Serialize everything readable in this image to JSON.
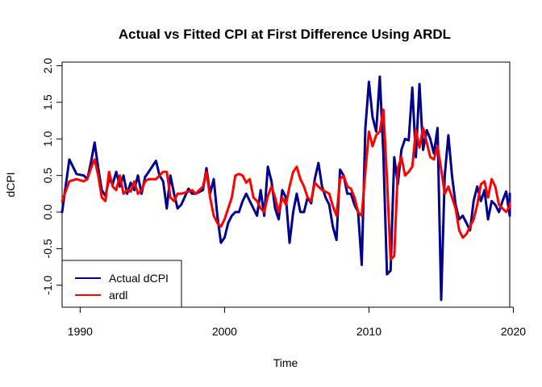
{
  "chart_data": {
    "type": "line",
    "title": "Actual vs Fitted CPI at First Difference Using ARDL",
    "xlabel": "Time",
    "ylabel": "dCPI",
    "xlim": [
      1988.75,
      2019.75
    ],
    "ylim": [
      -1.3,
      2.05
    ],
    "x_ticks": [
      1990,
      2000,
      2010,
      2020
    ],
    "y_ticks": [
      -1.0,
      -0.5,
      0.0,
      0.5,
      1.0,
      1.5,
      2.0
    ],
    "y_tick_labels": [
      "-1.0",
      "-0.5",
      "0.0",
      "0.5",
      "1.0",
      "1.5",
      "2.0"
    ],
    "grid": false,
    "legend_position": "bottom-left",
    "series": [
      {
        "name": "Actual dCPI",
        "color": "#00008B",
        "points": [
          [
            1988.75,
            0.0
          ],
          [
            1989.25,
            0.72
          ],
          [
            1989.75,
            0.52
          ],
          [
            1990.25,
            0.5
          ],
          [
            1990.5,
            0.45
          ],
          [
            1990.75,
            0.68
          ],
          [
            1991.0,
            0.95
          ],
          [
            1991.25,
            0.6
          ],
          [
            1991.5,
            0.3
          ],
          [
            1991.75,
            0.22
          ],
          [
            1992.0,
            0.45
          ],
          [
            1992.25,
            0.38
          ],
          [
            1992.5,
            0.55
          ],
          [
            1992.75,
            0.35
          ],
          [
            1993.0,
            0.5
          ],
          [
            1993.25,
            0.25
          ],
          [
            1993.5,
            0.4
          ],
          [
            1993.75,
            0.3
          ],
          [
            1994.0,
            0.5
          ],
          [
            1994.25,
            0.25
          ],
          [
            1994.5,
            0.48
          ],
          [
            1994.75,
            0.55
          ],
          [
            1995.25,
            0.7
          ],
          [
            1995.5,
            0.5
          ],
          [
            1995.75,
            0.42
          ],
          [
            1996.0,
            0.05
          ],
          [
            1996.25,
            0.5
          ],
          [
            1996.5,
            0.25
          ],
          [
            1996.75,
            0.05
          ],
          [
            1997.0,
            0.1
          ],
          [
            1997.5,
            0.32
          ],
          [
            1997.75,
            0.25
          ],
          [
            1998.0,
            0.25
          ],
          [
            1998.5,
            0.3
          ],
          [
            1998.75,
            0.6
          ],
          [
            1999.0,
            0.25
          ],
          [
            1999.25,
            0.45
          ],
          [
            1999.5,
            -0.05
          ],
          [
            1999.75,
            -0.42
          ],
          [
            2000.0,
            -0.35
          ],
          [
            2000.25,
            -0.15
          ],
          [
            2000.5,
            -0.05
          ],
          [
            2000.75,
            0.0
          ],
          [
            2001.0,
            0.0
          ],
          [
            2001.25,
            0.15
          ],
          [
            2001.5,
            0.25
          ],
          [
            2001.75,
            0.15
          ],
          [
            2002.0,
            0.05
          ],
          [
            2002.25,
            -0.05
          ],
          [
            2002.5,
            0.3
          ],
          [
            2002.75,
            -0.05
          ],
          [
            2003.0,
            0.62
          ],
          [
            2003.25,
            0.42
          ],
          [
            2003.5,
            0.05
          ],
          [
            2003.75,
            -0.1
          ],
          [
            2004.0,
            0.3
          ],
          [
            2004.25,
            0.2
          ],
          [
            2004.5,
            -0.42
          ],
          [
            2004.75,
            0.0
          ],
          [
            2005.0,
            0.25
          ],
          [
            2005.25,
            0.0
          ],
          [
            2005.5,
            0.0
          ],
          [
            2005.75,
            0.2
          ],
          [
            2006.0,
            0.12
          ],
          [
            2006.25,
            0.45
          ],
          [
            2006.5,
            0.67
          ],
          [
            2006.75,
            0.35
          ],
          [
            2007.0,
            0.2
          ],
          [
            2007.25,
            0.1
          ],
          [
            2007.5,
            -0.2
          ],
          [
            2007.75,
            -0.38
          ],
          [
            2008.0,
            0.58
          ],
          [
            2008.25,
            0.5
          ],
          [
            2008.5,
            0.25
          ],
          [
            2008.75,
            0.25
          ],
          [
            2009.0,
            0.1
          ],
          [
            2009.25,
            0.0
          ],
          [
            2009.5,
            -0.72
          ],
          [
            2009.75,
            1.15
          ],
          [
            2010.0,
            1.78
          ],
          [
            2010.25,
            1.3
          ],
          [
            2010.5,
            1.1
          ],
          [
            2010.75,
            1.85
          ],
          [
            2011.0,
            0.8
          ],
          [
            2011.25,
            -0.85
          ],
          [
            2011.5,
            -0.8
          ],
          [
            2011.75,
            0.75
          ],
          [
            2012.0,
            0.38
          ],
          [
            2012.25,
            0.85
          ],
          [
            2012.5,
            1.0
          ],
          [
            2012.75,
            0.98
          ],
          [
            2013.0,
            1.7
          ],
          [
            2013.25,
            0.75
          ],
          [
            2013.5,
            1.75
          ],
          [
            2013.75,
            0.85
          ],
          [
            2014.0,
            1.12
          ],
          [
            2014.25,
            1.0
          ],
          [
            2014.5,
            0.8
          ],
          [
            2014.75,
            1.15
          ],
          [
            2015.0,
            -1.2
          ],
          [
            2015.25,
            0.5
          ],
          [
            2015.5,
            1.05
          ],
          [
            2015.75,
            0.5
          ],
          [
            2016.0,
            0.1
          ],
          [
            2016.25,
            -0.1
          ],
          [
            2016.5,
            -0.05
          ],
          [
            2016.75,
            -0.15
          ],
          [
            2017.0,
            -0.25
          ],
          [
            2017.25,
            0.15
          ],
          [
            2017.5,
            0.35
          ],
          [
            2017.75,
            0.15
          ],
          [
            2018.0,
            0.3
          ],
          [
            2018.25,
            -0.1
          ],
          [
            2018.5,
            0.15
          ],
          [
            2018.75,
            0.1
          ],
          [
            2019.0,
            0.0
          ],
          [
            2019.25,
            0.15
          ],
          [
            2019.5,
            0.28
          ],
          [
            2019.75,
            -0.05
          ],
          [
            2019.75,
            0.25
          ]
        ]
      },
      {
        "name": "ardl",
        "color": "#FF0000",
        "points": [
          [
            1988.75,
            0.15
          ],
          [
            1989.25,
            0.42
          ],
          [
            1989.75,
            0.45
          ],
          [
            1990.25,
            0.42
          ],
          [
            1990.5,
            0.45
          ],
          [
            1990.75,
            0.6
          ],
          [
            1991.0,
            0.72
          ],
          [
            1991.25,
            0.5
          ],
          [
            1991.5,
            0.2
          ],
          [
            1991.75,
            0.15
          ],
          [
            1992.0,
            0.55
          ],
          [
            1992.25,
            0.35
          ],
          [
            1992.5,
            0.3
          ],
          [
            1992.75,
            0.5
          ],
          [
            1993.0,
            0.25
          ],
          [
            1993.25,
            0.3
          ],
          [
            1993.5,
            0.28
          ],
          [
            1993.75,
            0.42
          ],
          [
            1994.0,
            0.25
          ],
          [
            1994.25,
            0.3
          ],
          [
            1994.5,
            0.42
          ],
          [
            1994.75,
            0.45
          ],
          [
            1995.25,
            0.45
          ],
          [
            1995.5,
            0.5
          ],
          [
            1995.75,
            0.55
          ],
          [
            1996.0,
            0.55
          ],
          [
            1996.25,
            0.2
          ],
          [
            1996.5,
            0.15
          ],
          [
            1996.75,
            0.25
          ],
          [
            1997.0,
            0.25
          ],
          [
            1997.5,
            0.28
          ],
          [
            1997.75,
            0.3
          ],
          [
            1998.0,
            0.25
          ],
          [
            1998.5,
            0.35
          ],
          [
            1998.75,
            0.55
          ],
          [
            1999.0,
            0.2
          ],
          [
            1999.25,
            -0.05
          ],
          [
            1999.5,
            -0.15
          ],
          [
            1999.75,
            -0.2
          ],
          [
            2000.0,
            -0.1
          ],
          [
            2000.25,
            0.05
          ],
          [
            2000.5,
            0.2
          ],
          [
            2000.75,
            0.5
          ],
          [
            2001.0,
            0.52
          ],
          [
            2001.25,
            0.5
          ],
          [
            2001.5,
            0.4
          ],
          [
            2001.75,
            0.45
          ],
          [
            2002.0,
            0.2
          ],
          [
            2002.25,
            0.15
          ],
          [
            2002.5,
            0.05
          ],
          [
            2002.75,
            0.0
          ],
          [
            2003.0,
            0.22
          ],
          [
            2003.25,
            0.35
          ],
          [
            2003.5,
            0.2
          ],
          [
            2003.75,
            0.0
          ],
          [
            2004.0,
            0.2
          ],
          [
            2004.25,
            0.1
          ],
          [
            2004.5,
            0.35
          ],
          [
            2004.75,
            0.55
          ],
          [
            2005.0,
            0.62
          ],
          [
            2005.25,
            0.45
          ],
          [
            2005.5,
            0.35
          ],
          [
            2005.75,
            0.2
          ],
          [
            2006.0,
            0.15
          ],
          [
            2006.25,
            0.4
          ],
          [
            2006.5,
            0.35
          ],
          [
            2006.75,
            0.3
          ],
          [
            2007.0,
            0.28
          ],
          [
            2007.25,
            0.25
          ],
          [
            2007.5,
            0.08
          ],
          [
            2007.75,
            -0.05
          ],
          [
            2008.0,
            0.45
          ],
          [
            2008.25,
            0.5
          ],
          [
            2008.5,
            0.35
          ],
          [
            2008.75,
            0.32
          ],
          [
            2009.0,
            0.2
          ],
          [
            2009.25,
            0.0
          ],
          [
            2009.5,
            -0.05
          ],
          [
            2009.75,
            0.55
          ],
          [
            2010.0,
            1.1
          ],
          [
            2010.25,
            0.9
          ],
          [
            2010.5,
            1.05
          ],
          [
            2010.75,
            1.1
          ],
          [
            2011.0,
            1.4
          ],
          [
            2011.25,
            0.45
          ],
          [
            2011.5,
            -0.65
          ],
          [
            2011.75,
            -0.6
          ],
          [
            2012.0,
            0.6
          ],
          [
            2012.25,
            0.75
          ],
          [
            2012.5,
            0.5
          ],
          [
            2012.75,
            0.55
          ],
          [
            2013.0,
            0.62
          ],
          [
            2013.25,
            1.12
          ],
          [
            2013.5,
            0.88
          ],
          [
            2013.75,
            1.15
          ],
          [
            2014.0,
            0.95
          ],
          [
            2014.25,
            0.75
          ],
          [
            2014.5,
            0.72
          ],
          [
            2014.75,
            0.9
          ],
          [
            2015.0,
            0.58
          ],
          [
            2015.25,
            0.25
          ],
          [
            2015.5,
            0.35
          ],
          [
            2015.75,
            0.2
          ],
          [
            2016.0,
            0.05
          ],
          [
            2016.25,
            -0.25
          ],
          [
            2016.5,
            -0.35
          ],
          [
            2016.75,
            -0.3
          ],
          [
            2017.0,
            -0.2
          ],
          [
            2017.25,
            -0.1
          ],
          [
            2017.5,
            0.1
          ],
          [
            2017.75,
            0.38
          ],
          [
            2018.0,
            0.42
          ],
          [
            2018.25,
            0.2
          ],
          [
            2018.5,
            0.45
          ],
          [
            2018.75,
            0.35
          ],
          [
            2019.0,
            0.1
          ],
          [
            2019.25,
            0.05
          ],
          [
            2019.5,
            0.0
          ],
          [
            2019.75,
            0.08
          ],
          [
            2019.75,
            0.12
          ]
        ]
      }
    ]
  }
}
